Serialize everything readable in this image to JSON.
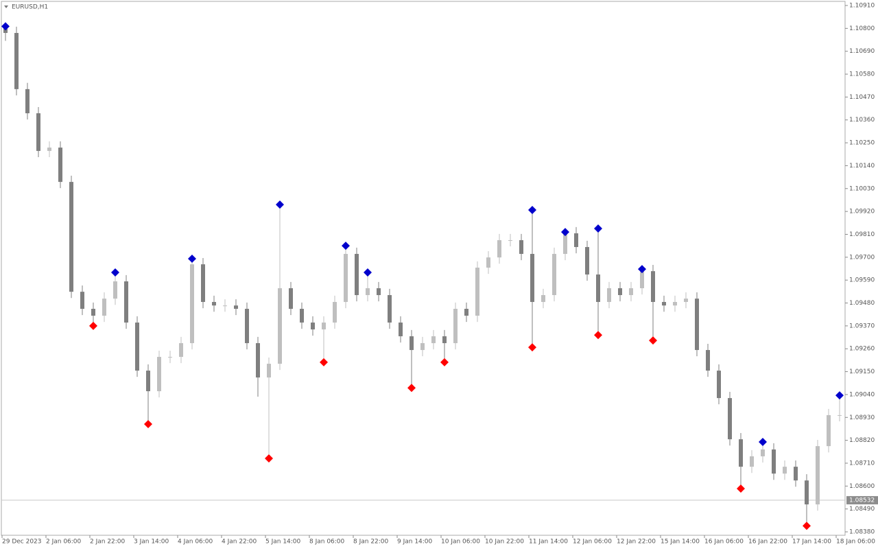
{
  "chart_data": {
    "type": "candlestick",
    "title": "EURUSD,H1",
    "open": [
      1.108,
      1.10778,
      1.10508,
      1.10392,
      1.10211,
      1.10227,
      1.10062,
      1.09534,
      1.09452,
      1.09419,
      1.09501,
      1.09584,
      1.09386,
      1.09155,
      1.09056,
      1.09221,
      1.09221,
      1.09287,
      1.09666,
      1.09485,
      1.09468,
      1.09468,
      1.09452,
      1.09287,
      1.09122,
      1.09188,
      1.09551,
      1.09452,
      1.09386,
      1.09353,
      1.09386,
      1.09485,
      1.09716,
      1.09518,
      1.09551,
      1.09518,
      1.09386,
      1.0932,
      1.09254,
      1.09287,
      1.0932,
      1.09287,
      1.09452,
      1.09419,
      1.0965,
      1.09699,
      1.09782,
      1.09782,
      1.09716,
      1.09485,
      1.09518,
      1.09716,
      1.09815,
      1.09749,
      1.09617,
      1.09485,
      1.09551,
      1.09518,
      1.09551,
      1.09633,
      1.09485,
      1.09468,
      1.09485,
      1.09501,
      1.09254,
      1.09155,
      1.09023,
      1.08825,
      1.08693,
      1.08743,
      1.08776,
      1.0866,
      1.08693,
      1.08627,
      1.08512,
      1.08792,
      1.08941
    ],
    "high": [
      1.1081,
      1.10808,
      1.10538,
      1.10422,
      1.10257,
      1.10257,
      1.10092,
      1.09564,
      1.09482,
      1.09531,
      1.09627,
      1.09614,
      1.09416,
      1.09185,
      1.09251,
      1.09251,
      1.09317,
      1.09693,
      1.09696,
      1.09515,
      1.09498,
      1.09498,
      1.09482,
      1.09317,
      1.09218,
      1.09953,
      1.09581,
      1.09482,
      1.09416,
      1.09416,
      1.09515,
      1.09755,
      1.09746,
      1.09627,
      1.09581,
      1.09548,
      1.09416,
      1.0935,
      1.09317,
      1.0935,
      1.0935,
      1.09482,
      1.09482,
      1.0968,
      1.09729,
      1.09812,
      1.09812,
      1.09812,
      1.09927,
      1.09548,
      1.09746,
      1.09821,
      1.09845,
      1.09779,
      1.09838,
      1.09581,
      1.09581,
      1.09581,
      1.09643,
      1.09663,
      1.09515,
      1.09515,
      1.09531,
      1.09531,
      1.09284,
      1.09185,
      1.09053,
      1.08855,
      1.08773,
      1.08812,
      1.08806,
      1.08723,
      1.08723,
      1.08657,
      1.08822,
      1.08971,
      1.09036
    ],
    "low": [
      1.1074,
      1.10478,
      1.10362,
      1.10181,
      1.10181,
      1.10032,
      1.09504,
      1.09422,
      1.0937,
      1.09389,
      1.09471,
      1.09356,
      1.09125,
      1.08898,
      1.09026,
      1.09191,
      1.09191,
      1.09257,
      1.09455,
      1.09438,
      1.09438,
      1.09422,
      1.09257,
      1.0903,
      1.08733,
      1.09158,
      1.09422,
      1.09356,
      1.09323,
      1.09195,
      1.09356,
      1.09455,
      1.09488,
      1.09488,
      1.09488,
      1.09356,
      1.0929,
      1.09072,
      1.09224,
      1.09257,
      1.09195,
      1.09257,
      1.09389,
      1.09389,
      1.0962,
      1.09669,
      1.09752,
      1.09686,
      1.09267,
      1.09455,
      1.09488,
      1.09686,
      1.09719,
      1.09587,
      1.09326,
      1.09455,
      1.09488,
      1.09488,
      1.09521,
      1.093,
      1.09438,
      1.09438,
      1.09455,
      1.09224,
      1.09125,
      1.08993,
      1.08795,
      1.08588,
      1.08663,
      1.08713,
      1.0863,
      1.0863,
      1.08597,
      1.08409,
      1.08482,
      1.08762,
      1.08911
    ],
    "close": [
      1.10778,
      1.10508,
      1.10392,
      1.10211,
      1.10227,
      1.10062,
      1.09534,
      1.09452,
      1.09419,
      1.09501,
      1.09584,
      1.09386,
      1.09155,
      1.09056,
      1.09221,
      1.09221,
      1.09287,
      1.09666,
      1.09485,
      1.09468,
      1.09468,
      1.09452,
      1.09287,
      1.09122,
      1.09188,
      1.09551,
      1.09452,
      1.09386,
      1.09353,
      1.09386,
      1.09485,
      1.09716,
      1.09518,
      1.09551,
      1.09518,
      1.09386,
      1.0932,
      1.09254,
      1.09287,
      1.0932,
      1.09287,
      1.09452,
      1.09419,
      1.0965,
      1.09699,
      1.09782,
      1.09782,
      1.09716,
      1.09485,
      1.09518,
      1.09716,
      1.09815,
      1.09749,
      1.09617,
      1.09485,
      1.09551,
      1.09518,
      1.09551,
      1.09633,
      1.09485,
      1.09468,
      1.09485,
      1.09501,
      1.09254,
      1.09155,
      1.09023,
      1.08825,
      1.08693,
      1.08743,
      1.08776,
      1.0866,
      1.08693,
      1.08627,
      1.08512,
      1.08792,
      1.08941,
      1.08941
    ],
    "peaks": [
      1.1081,
      null,
      null,
      null,
      null,
      null,
      null,
      null,
      null,
      null,
      1.09627,
      null,
      null,
      null,
      null,
      null,
      null,
      1.09693,
      null,
      null,
      null,
      null,
      null,
      null,
      null,
      1.09953,
      null,
      null,
      null,
      null,
      null,
      1.09755,
      null,
      1.09627,
      null,
      null,
      null,
      null,
      null,
      null,
      null,
      null,
      null,
      null,
      null,
      null,
      null,
      null,
      1.09927,
      null,
      null,
      1.09821,
      null,
      null,
      1.09838,
      null,
      null,
      null,
      1.09643,
      null,
      null,
      null,
      null,
      null,
      null,
      null,
      null,
      null,
      null,
      1.08812,
      null,
      null,
      null,
      null,
      null,
      null,
      1.09036
    ],
    "troughs": [
      null,
      null,
      null,
      null,
      null,
      null,
      null,
      null,
      1.0937,
      null,
      null,
      null,
      null,
      1.08898,
      null,
      null,
      null,
      null,
      null,
      null,
      null,
      null,
      null,
      null,
      1.08733,
      null,
      null,
      null,
      null,
      1.09195,
      null,
      null,
      null,
      null,
      null,
      null,
      null,
      1.09072,
      null,
      null,
      1.09195,
      null,
      null,
      null,
      null,
      null,
      null,
      null,
      1.09267,
      null,
      null,
      null,
      null,
      null,
      1.09326,
      null,
      null,
      null,
      null,
      1.093,
      null,
      null,
      null,
      null,
      null,
      null,
      null,
      1.08588,
      null,
      null,
      null,
      null,
      null,
      1.08409,
      null,
      null,
      null
    ],
    "up_color": "#bfbfbf",
    "down_color": "#7f7f7f",
    "peak_color": "#0000cc",
    "trough_color": "#ff0000",
    "current_price": 1.08532,
    "x_labels": [
      "29 Dec 2023",
      "2 Jan 06:00",
      "2 Jan 22:00",
      "3 Jan 14:00",
      "4 Jan 06:00",
      "4 Jan 22:00",
      "5 Jan 14:00",
      "8 Jan 06:00",
      "8 Jan 22:00",
      "9 Jan 14:00",
      "10 Jan 06:00",
      "10 Jan 22:00",
      "11 Jan 14:00",
      "12 Jan 06:00",
      "12 Jan 22:00",
      "15 Jan 14:00",
      "16 Jan 06:00",
      "16 Jan 22:00",
      "17 Jan 14:00",
      "18 Jan 06:00"
    ],
    "ylim": [
      1.0838,
      1.1091
    ],
    "yticks": [
      {
        "value": 1.1091,
        "label": "1.10910"
      },
      {
        "value": 1.108,
        "label": "1.10800"
      },
      {
        "value": 1.1069,
        "label": "1.10690"
      },
      {
        "value": 1.1058,
        "label": "1.10580"
      },
      {
        "value": 1.1047,
        "label": "1.10470"
      },
      {
        "value": 1.1036,
        "label": "1.10360"
      },
      {
        "value": 1.1025,
        "label": "1.10250"
      },
      {
        "value": 1.1014,
        "label": "1.10140"
      },
      {
        "value": 1.1003,
        "label": "1.10030"
      },
      {
        "value": 1.0992,
        "label": "1.09920"
      },
      {
        "value": 1.0981,
        "label": "1.09810"
      },
      {
        "value": 1.097,
        "label": "1.09700"
      },
      {
        "value": 1.0959,
        "label": "1.09590"
      },
      {
        "value": 1.0948,
        "label": "1.09480"
      },
      {
        "value": 1.0937,
        "label": "1.09370"
      },
      {
        "value": 1.0926,
        "label": "1.09260"
      },
      {
        "value": 1.0915,
        "label": "1.09150"
      },
      {
        "value": 1.0904,
        "label": "1.09040"
      },
      {
        "value": 1.0893,
        "label": "1.08930"
      },
      {
        "value": 1.0882,
        "label": "1.08820"
      },
      {
        "value": 1.0871,
        "label": "1.08710"
      },
      {
        "value": 1.086,
        "label": "1.08600"
      },
      {
        "value": 1.0849,
        "label": "1.08490"
      },
      {
        "value": 1.0838,
        "label": "1.08380"
      }
    ]
  }
}
